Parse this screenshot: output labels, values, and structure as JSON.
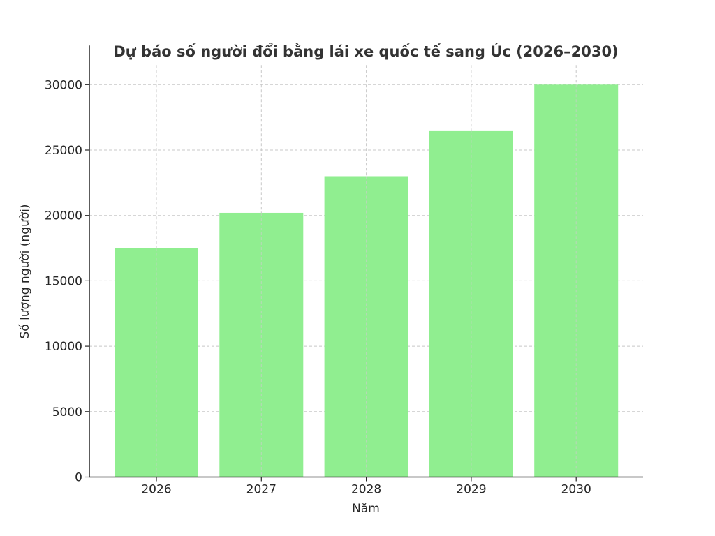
{
  "chart_data": {
    "type": "bar",
    "title": "Dự báo số người đổi bằng lái xe quốc tế sang Úc (2026–2030)",
    "xlabel": "Năm",
    "ylabel": "Số lượng người (người)",
    "categories": [
      "2026",
      "2027",
      "2028",
      "2029",
      "2030"
    ],
    "values": [
      17500,
      20200,
      23000,
      26500,
      30000
    ],
    "ylim": [
      0,
      31500
    ],
    "yticks": [
      0,
      5000,
      10000,
      15000,
      20000,
      25000,
      30000
    ],
    "ytick_labels": [
      "0",
      "5000",
      "10000",
      "15000",
      "20000",
      "25000",
      "30000"
    ],
    "grid": true,
    "grid_style": "dashed",
    "legend": null,
    "colors": {
      "bar": "#90ee90",
      "grid": "#c8c8c8",
      "axis": "#262626",
      "title": "#333333"
    }
  }
}
